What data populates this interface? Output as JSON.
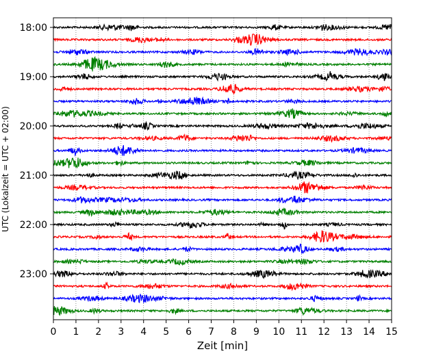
{
  "chart_data": {
    "type": "line",
    "title": "",
    "xlabel": "Zeit  [min]",
    "ylabel": "UTC (Lokalzeit = UTC + 02:00)",
    "xlim": [
      0,
      15
    ],
    "x_ticks": [
      "0",
      "1",
      "2",
      "3",
      "4",
      "5",
      "6",
      "7",
      "8",
      "9",
      "10",
      "11",
      "12",
      "13",
      "14",
      "15"
    ],
    "y_ticks": [
      "18:00",
      "19:00",
      "20:00",
      "21:00",
      "22:00",
      "23:00"
    ],
    "trace_interval_min": 15,
    "trace_start": "18:00",
    "trace_count": 24,
    "grid": "vertical-dotted",
    "series_colors": [
      "#000000",
      "#ff0000",
      "#0000ff",
      "#008000"
    ]
  }
}
